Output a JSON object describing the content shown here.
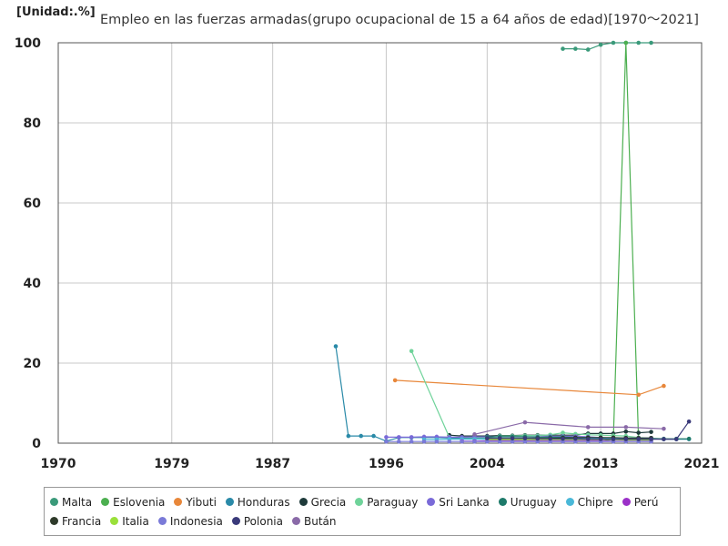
{
  "unit_label": "[Unidad:.%]",
  "chart_data": {
    "type": "line",
    "title": "Empleo en las fuerzas armadas(grupo ocupacional de 15 a 64 años de edad)[1970～2021]",
    "xlabel": "",
    "ylabel": "",
    "xlim": [
      1970,
      2021
    ],
    "ylim": [
      0,
      100
    ],
    "x_ticks": [
      1970,
      1979,
      1987,
      1996,
      2004,
      2013,
      2021
    ],
    "y_ticks": [
      0,
      20,
      40,
      60,
      80,
      100
    ],
    "grid": true,
    "legend_position": "bottom",
    "series": [
      {
        "name": "Malta",
        "color": "#3a9a7a",
        "points": [
          [
            2010,
            98.5
          ],
          [
            2011,
            98.5
          ],
          [
            2012,
            98.3
          ],
          [
            2013,
            99.5
          ],
          [
            2014,
            100
          ],
          [
            2015,
            100
          ],
          [
            2016,
            100
          ],
          [
            2017,
            100
          ]
        ]
      },
      {
        "name": "Eslovenia",
        "color": "#4caf50",
        "points": [
          [
            2013,
            0.4
          ],
          [
            2014,
            1.0
          ],
          [
            2015,
            100
          ],
          [
            2016,
            0.8
          ],
          [
            2017,
            0.8
          ]
        ]
      },
      {
        "name": "Yibuti",
        "color": "#e8873a",
        "points": [
          [
            1996.7,
            15.7
          ],
          [
            2016,
            12.1
          ],
          [
            2018,
            14.3
          ]
        ]
      },
      {
        "name": "Honduras",
        "color": "#2a8aa8",
        "points": [
          [
            1992,
            24.2
          ],
          [
            1993,
            1.8
          ],
          [
            1994,
            1.8
          ],
          [
            1995,
            1.8
          ],
          [
            1996,
            0.5
          ],
          [
            1997,
            1.4
          ],
          [
            1998,
            1.4
          ],
          [
            1999,
            1.4
          ],
          [
            2000,
            1.4
          ],
          [
            2001,
            1.3
          ],
          [
            2003,
            1.2
          ],
          [
            2004,
            1.2
          ],
          [
            2005,
            1.1
          ],
          [
            2006,
            1.1
          ],
          [
            2007,
            1.1
          ],
          [
            2008,
            1.0
          ],
          [
            2009,
            1.0
          ],
          [
            2010,
            1.0
          ],
          [
            2011,
            1.0
          ],
          [
            2012,
            1.1
          ],
          [
            2013,
            1.1
          ],
          [
            2014,
            1.2
          ],
          [
            2015,
            1.2
          ],
          [
            2016,
            1.1
          ],
          [
            2017,
            1.1
          ],
          [
            2018,
            1.0
          ],
          [
            2019,
            1.0
          ],
          [
            2020,
            1.0
          ]
        ]
      },
      {
        "name": "Grecia",
        "color": "#1e3a3a",
        "points": [
          [
            2001,
            2.0
          ],
          [
            2002,
            1.8
          ],
          [
            2003,
            1.8
          ],
          [
            2004,
            1.8
          ],
          [
            2005,
            1.9
          ],
          [
            2006,
            1.9
          ],
          [
            2007,
            2.0
          ],
          [
            2008,
            2.0
          ],
          [
            2009,
            2.0
          ],
          [
            2010,
            2.0
          ],
          [
            2011,
            2.0
          ],
          [
            2012,
            2.4
          ],
          [
            2013,
            2.4
          ],
          [
            2014,
            2.4
          ],
          [
            2015,
            2.9
          ],
          [
            2016,
            2.6
          ],
          [
            2017,
            2.8
          ]
        ]
      },
      {
        "name": "Paraguay",
        "color": "#6fd39a",
        "points": [
          [
            1998,
            23.0
          ],
          [
            2001,
            1.5
          ],
          [
            2003,
            1.4
          ],
          [
            2004,
            1.4
          ],
          [
            2005,
            1.8
          ],
          [
            2006,
            1.8
          ],
          [
            2007,
            1.9
          ],
          [
            2008,
            1.9
          ],
          [
            2009,
            2.1
          ],
          [
            2010,
            2.6
          ],
          [
            2011,
            2.3
          ],
          [
            2012,
            2.1
          ],
          [
            2013,
            2.0
          ],
          [
            2014,
            1.9
          ],
          [
            2015,
            1.8
          ],
          [
            2016,
            1.4
          ],
          [
            2017,
            1.3
          ]
        ]
      },
      {
        "name": "Sri Lanka",
        "color": "#7a6ad8",
        "points": [
          [
            1996,
            1.5
          ],
          [
            1997,
            1.5
          ],
          [
            1998,
            1.5
          ],
          [
            1999,
            1.6
          ],
          [
            2000,
            1.6
          ],
          [
            2001,
            1.5
          ],
          [
            2002,
            1.5
          ],
          [
            2003,
            1.6
          ],
          [
            2004,
            1.6
          ],
          [
            2005,
            1.6
          ],
          [
            2006,
            1.6
          ],
          [
            2007,
            1.6
          ],
          [
            2008,
            1.6
          ],
          [
            2009,
            1.7
          ],
          [
            2010,
            1.7
          ],
          [
            2011,
            1.7
          ],
          [
            2012,
            1.6
          ],
          [
            2013,
            1.4
          ],
          [
            2014,
            1.3
          ],
          [
            2015,
            1.3
          ],
          [
            2016,
            1.3
          ],
          [
            2017,
            1.3
          ]
        ]
      },
      {
        "name": "Uruguay",
        "color": "#1e7a6a",
        "points": [
          [
            2004,
            1.5
          ],
          [
            2005,
            1.6
          ],
          [
            2006,
            1.6
          ],
          [
            2007,
            1.6
          ],
          [
            2008,
            1.5
          ],
          [
            2009,
            1.5
          ],
          [
            2010,
            1.5
          ],
          [
            2011,
            1.4
          ],
          [
            2012,
            1.4
          ],
          [
            2013,
            1.3
          ],
          [
            2014,
            1.3
          ],
          [
            2015,
            1.3
          ],
          [
            2016,
            1.2
          ],
          [
            2017,
            1.2
          ],
          [
            2018,
            1.1
          ],
          [
            2019,
            1.1
          ],
          [
            2020,
            1.1
          ]
        ]
      },
      {
        "name": "Chipre",
        "color": "#4ab8d8",
        "points": [
          [
            1999,
            0.9
          ],
          [
            2000,
            0.9
          ],
          [
            2001,
            1.0
          ],
          [
            2002,
            1.0
          ],
          [
            2003,
            1.0
          ],
          [
            2004,
            1.0
          ],
          [
            2005,
            1.0
          ],
          [
            2006,
            1.0
          ],
          [
            2007,
            1.0
          ],
          [
            2008,
            1.0
          ],
          [
            2009,
            1.0
          ],
          [
            2010,
            1.1
          ],
          [
            2011,
            1.2
          ],
          [
            2012,
            1.2
          ],
          [
            2013,
            1.2
          ],
          [
            2014,
            1.2
          ],
          [
            2015,
            1.1
          ],
          [
            2016,
            1.1
          ],
          [
            2017,
            1.1
          ]
        ]
      },
      {
        "name": "Perú",
        "color": "#9b30c8",
        "points": [
          [
            2002,
            0.5
          ],
          [
            2003,
            0.5
          ],
          [
            2004,
            0.6
          ],
          [
            2005,
            0.6
          ],
          [
            2006,
            0.6
          ],
          [
            2007,
            0.6
          ],
          [
            2008,
            0.6
          ],
          [
            2009,
            0.6
          ],
          [
            2010,
            0.6
          ],
          [
            2011,
            0.6
          ],
          [
            2012,
            0.6
          ],
          [
            2013,
            0.6
          ],
          [
            2014,
            0.5
          ],
          [
            2015,
            0.5
          ],
          [
            2016,
            0.5
          ],
          [
            2017,
            0.5
          ]
        ]
      },
      {
        "name": "Francia",
        "color": "#2e3a2a",
        "points": [
          [
            2004,
            1.1
          ],
          [
            2005,
            1.1
          ],
          [
            2006,
            1.1
          ],
          [
            2007,
            1.2
          ],
          [
            2008,
            1.2
          ],
          [
            2009,
            1.2
          ],
          [
            2010,
            1.3
          ],
          [
            2011,
            1.4
          ],
          [
            2012,
            1.4
          ],
          [
            2013,
            1.4
          ],
          [
            2014,
            1.4
          ],
          [
            2015,
            1.3
          ],
          [
            2016,
            1.3
          ],
          [
            2017,
            1.3
          ]
        ]
      },
      {
        "name": "Italia",
        "color": "#9ae03a",
        "points": [
          [
            2004,
            0.9
          ],
          [
            2005,
            0.9
          ],
          [
            2006,
            0.9
          ],
          [
            2007,
            0.9
          ],
          [
            2008,
            0.9
          ],
          [
            2009,
            0.9
          ],
          [
            2010,
            0.9
          ],
          [
            2011,
            0.9
          ],
          [
            2012,
            0.9
          ],
          [
            2013,
            0.9
          ],
          [
            2014,
            0.9
          ],
          [
            2015,
            0.8
          ],
          [
            2016,
            0.8
          ],
          [
            2017,
            0.8
          ]
        ]
      },
      {
        "name": "Indonesia",
        "color": "#7a7ad8",
        "points": [
          [
            1996,
            0.4
          ],
          [
            1997,
            0.4
          ],
          [
            1998,
            0.4
          ],
          [
            1999,
            0.4
          ],
          [
            2000,
            0.4
          ],
          [
            2001,
            0.4
          ],
          [
            2002,
            0.4
          ],
          [
            2003,
            0.4
          ],
          [
            2004,
            0.4
          ],
          [
            2005,
            0.4
          ],
          [
            2006,
            0.4
          ],
          [
            2007,
            0.4
          ],
          [
            2008,
            0.4
          ],
          [
            2009,
            0.4
          ],
          [
            2010,
            0.4
          ],
          [
            2011,
            0.4
          ],
          [
            2012,
            0.4
          ],
          [
            2013,
            0.4
          ],
          [
            2014,
            0.4
          ],
          [
            2015,
            0.4
          ],
          [
            2016,
            0.4
          ],
          [
            2017,
            0.4
          ]
        ]
      },
      {
        "name": "Polonia",
        "color": "#3a3a7a",
        "points": [
          [
            2004,
            1.2
          ],
          [
            2005,
            1.2
          ],
          [
            2006,
            1.2
          ],
          [
            2007,
            1.2
          ],
          [
            2008,
            1.1
          ],
          [
            2009,
            1.1
          ],
          [
            2010,
            1.1
          ],
          [
            2011,
            1.1
          ],
          [
            2012,
            1.0
          ],
          [
            2013,
            1.0
          ],
          [
            2014,
            1.0
          ],
          [
            2015,
            1.0
          ],
          [
            2016,
            1.0
          ],
          [
            2017,
            1.0
          ],
          [
            2018,
            1.0
          ],
          [
            2019,
            1.0
          ],
          [
            2020,
            5.4
          ]
        ]
      },
      {
        "name": "Bután",
        "color": "#8a6aa8",
        "points": [
          [
            2003,
            2.2
          ],
          [
            2007,
            5.2
          ],
          [
            2012,
            4.0
          ],
          [
            2015,
            4.0
          ],
          [
            2018,
            3.6
          ]
        ]
      }
    ]
  }
}
